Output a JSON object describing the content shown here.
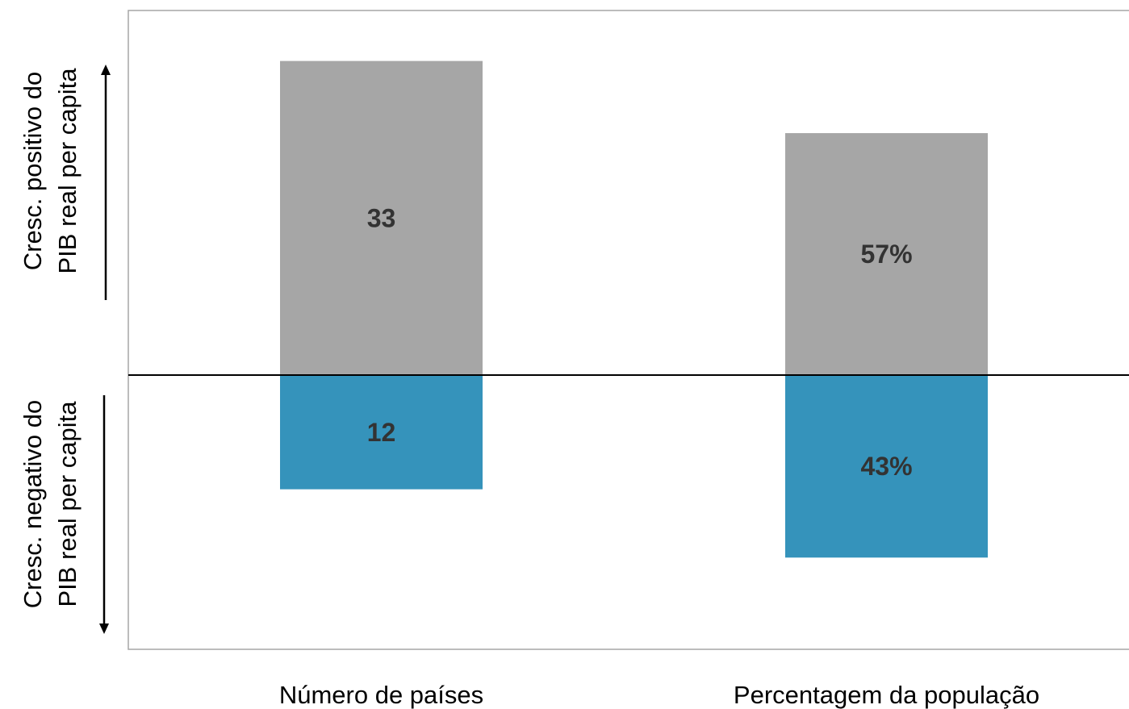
{
  "chart_data": {
    "type": "bar",
    "stacked": "diverging",
    "categories": [
      "Número de países",
      "Percentagem da população"
    ],
    "series": [
      {
        "name": "Cresc. positivo do PIB real per capita",
        "values": [
          33,
          57
        ],
        "labels": [
          "33",
          "57%"
        ],
        "color": "#a6a6a6",
        "direction": "up"
      },
      {
        "name": "Cresc. negativo do PIB real per capita",
        "values": [
          12,
          43
        ],
        "labels": [
          "12",
          "43%"
        ],
        "color": "#3593bb",
        "direction": "down"
      }
    ],
    "side_labels": {
      "positive": [
        "Cresc. positivo do",
        "PIB real per capita"
      ],
      "negative": [
        "Cresc. negativo do",
        "PIB real per capita"
      ]
    },
    "grid": false,
    "legend": "none"
  }
}
